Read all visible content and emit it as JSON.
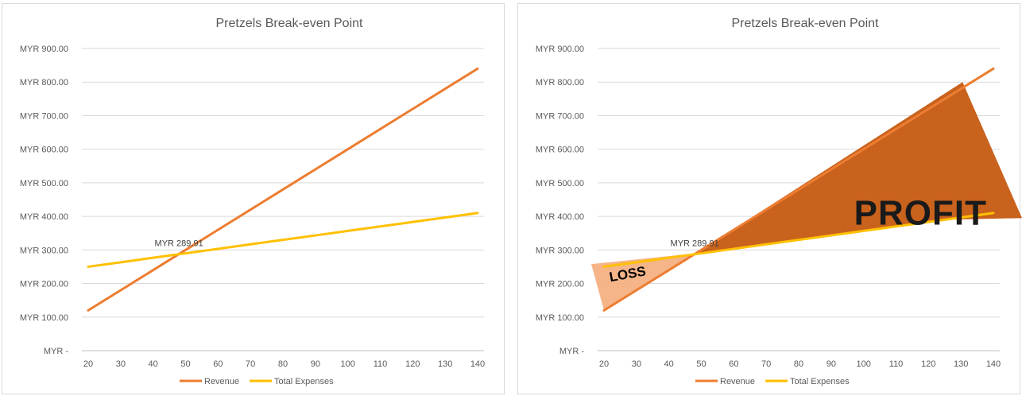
{
  "chart_data": [
    {
      "type": "line",
      "title": "Pretzels Break-even Point",
      "categories": [
        20,
        30,
        40,
        50,
        60,
        70,
        80,
        90,
        100,
        110,
        120,
        130,
        140
      ],
      "y_tick_labels": [
        "MYR -",
        "MYR 100.00",
        "MYR 200.00",
        "MYR 300.00",
        "MYR 400.00",
        "MYR 500.00",
        "MYR 600.00",
        "MYR 700.00",
        "MYR 800.00",
        "MYR 900.00"
      ],
      "ylim": [
        0,
        900
      ],
      "grid": true,
      "legend_position": "bottom",
      "series": [
        {
          "name": "Revenue",
          "color": "#ED7D31",
          "values": [
            120,
            180,
            240,
            300,
            360,
            420,
            480,
            540,
            600,
            660,
            720,
            780,
            840
          ]
        },
        {
          "name": "Total Expenses",
          "color": "#FFC000",
          "values": [
            250,
            263.3,
            276.7,
            290,
            303.3,
            316.7,
            330,
            343.3,
            356.7,
            370,
            383.3,
            396.7,
            410
          ]
        }
      ],
      "annotation": {
        "text": "MYR 289.91",
        "x": 48.3,
        "y": 289.91
      }
    },
    {
      "type": "line",
      "title": "Pretzels Break-even Point",
      "categories": [
        20,
        30,
        40,
        50,
        60,
        70,
        80,
        90,
        100,
        110,
        120,
        130,
        140
      ],
      "y_tick_labels": [
        "MYR -",
        "MYR 100.00",
        "MYR 200.00",
        "MYR 300.00",
        "MYR 400.00",
        "MYR 500.00",
        "MYR 600.00",
        "MYR 700.00",
        "MYR 800.00",
        "MYR 900.00"
      ],
      "ylim": [
        0,
        900
      ],
      "grid": true,
      "legend_position": "bottom",
      "series": [
        {
          "name": "Revenue",
          "color": "#ED7D31",
          "values": [
            120,
            180,
            240,
            300,
            360,
            420,
            480,
            540,
            600,
            660,
            720,
            780,
            840
          ]
        },
        {
          "name": "Total Expenses",
          "color": "#FFC000",
          "values": [
            250,
            263.3,
            276.7,
            290,
            303.3,
            316.7,
            330,
            343.3,
            356.7,
            370,
            383.3,
            396.7,
            410
          ]
        }
      ],
      "annotation": {
        "text": "MYR 289.91",
        "x": 48.3,
        "y": 289.91
      },
      "regions": [
        {
          "label": "PROFIT",
          "color": "#C55A11"
        },
        {
          "label": "LOSS",
          "color": "#F4B183"
        }
      ]
    }
  ]
}
